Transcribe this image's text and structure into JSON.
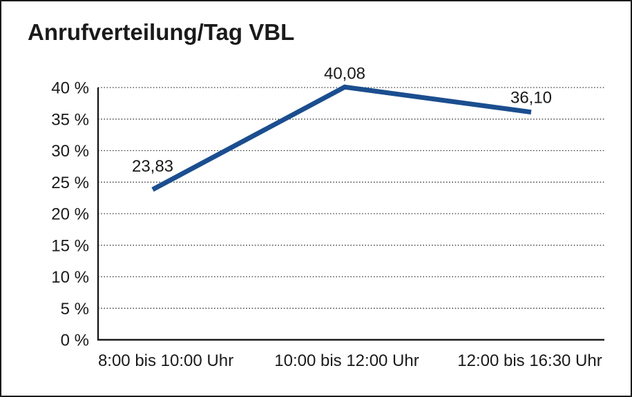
{
  "window": {
    "title": "Anrufverteilung/Tag VBL"
  },
  "colors": {
    "line": "#1B4E8F",
    "axis": "#1A1A1A",
    "grid": "#3A3A3A",
    "text": "#1A1A1A",
    "background": "#FFFFFF",
    "border": "#1A1A1A"
  },
  "chart_data": {
    "type": "line",
    "title": "Anrufverteilung/Tag VBL",
    "categories": [
      "8:00 bis 10:00 Uhr",
      "10:00 bis 12:00 Uhr",
      "12:00 bis 16:30 Uhr"
    ],
    "values": [
      23.83,
      40.08,
      36.1
    ],
    "value_labels": [
      "23,83",
      "40,08",
      "36,10"
    ],
    "series_name": "Anrufverteilung/Tag VBL",
    "xlabel": "",
    "ylabel": "",
    "ylim": [
      0,
      40
    ],
    "y_tick_values": [
      0,
      5,
      10,
      15,
      20,
      25,
      30,
      35,
      40
    ],
    "y_tick_labels": [
      "0 %",
      "5 %",
      "10 %",
      "15 %",
      "20 %",
      "25 %",
      "30 %",
      "35 %",
      "40 %"
    ],
    "grid": "horizontal-dotted",
    "legend_position": "none",
    "line_color": "#1B4E8F"
  }
}
